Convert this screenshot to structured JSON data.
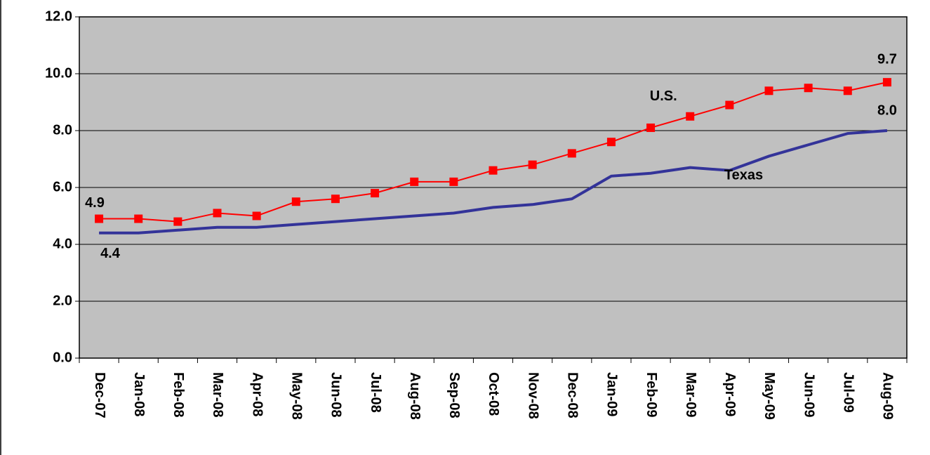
{
  "chart_data": {
    "type": "line",
    "categories": [
      "Dec-07",
      "Jan-08",
      "Feb-08",
      "Mar-08",
      "Apr-08",
      "May-08",
      "Jun-08",
      "Jul-08",
      "Aug-08",
      "Sep-08",
      "Oct-08",
      "Nov-08",
      "Dec-08",
      "Jan-09",
      "Feb-09",
      "Mar-09",
      "Apr-09",
      "May-09",
      "Jun-09",
      "Jul-09",
      "Aug-09"
    ],
    "series": [
      {
        "name": "U.S.",
        "color": "#ff0000",
        "marker": "square",
        "values": [
          4.9,
          4.9,
          4.8,
          5.1,
          5.0,
          5.5,
          5.6,
          5.8,
          6.2,
          6.2,
          6.6,
          6.8,
          7.2,
          7.6,
          8.1,
          8.5,
          8.9,
          9.4,
          9.5,
          9.4,
          9.7
        ],
        "value_labels": [
          "4.9",
          null,
          null,
          null,
          null,
          null,
          null,
          null,
          null,
          null,
          null,
          null,
          null,
          null,
          null,
          null,
          null,
          null,
          null,
          null,
          "9.7"
        ]
      },
      {
        "name": "Texas",
        "color": "#333399",
        "values": [
          4.4,
          4.4,
          4.5,
          4.6,
          4.6,
          4.7,
          4.8,
          4.9,
          5.0,
          5.1,
          5.3,
          5.4,
          5.6,
          6.4,
          6.5,
          6.7,
          6.6,
          7.1,
          7.5,
          7.9,
          8.0
        ],
        "value_labels": [
          "4.4",
          null,
          null,
          null,
          null,
          null,
          null,
          null,
          null,
          null,
          null,
          null,
          null,
          null,
          null,
          null,
          null,
          null,
          null,
          null,
          "8.0"
        ]
      }
    ],
    "ylim": [
      0,
      12
    ],
    "yticks": [
      {
        "value": 0,
        "label": "0.0"
      },
      {
        "value": 2,
        "label": "2.0"
      },
      {
        "value": 4,
        "label": "4.0"
      },
      {
        "value": 6,
        "label": "6.0"
      },
      {
        "value": 8,
        "label": "8.0"
      },
      {
        "value": 10,
        "label": "10.0"
      },
      {
        "value": 12,
        "label": "12.0"
      }
    ],
    "grid": true,
    "background": "#c0c0c0"
  }
}
